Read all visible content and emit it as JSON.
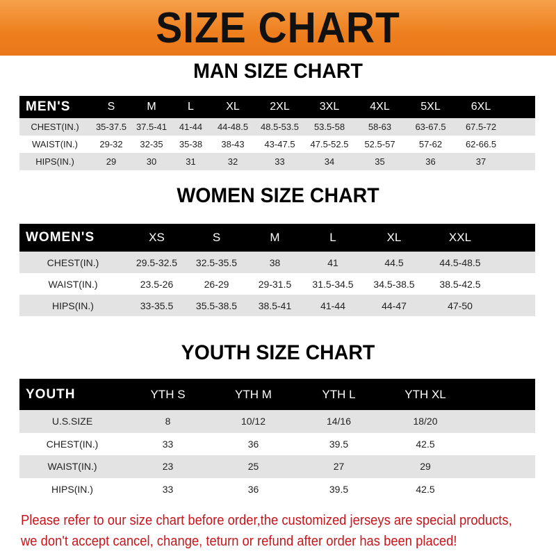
{
  "banner_title": "SIZE CHART",
  "men": {
    "title": "MAN SIZE CHART",
    "header": [
      "MEN'S",
      "S",
      "M",
      "L",
      "XL",
      "2XL",
      "3XL",
      "4XL",
      "5XL",
      "6XL"
    ],
    "rows": [
      [
        "CHEST(IN.)",
        "35-37.5",
        "37.5-41",
        "41-44",
        "44-48.5",
        "48.5-53.5",
        "53.5-58",
        "58-63",
        "63-67.5",
        "67.5-72"
      ],
      [
        "WAIST(IN.)",
        "29-32",
        "32-35",
        "35-38",
        "38-43",
        "43-47.5",
        "47.5-52.5",
        "52.5-57",
        "57-62",
        "62-66.5"
      ],
      [
        "HIPS(IN.)",
        "29",
        "30",
        "31",
        "32",
        "33",
        "34",
        "35",
        "36",
        "37"
      ]
    ]
  },
  "women": {
    "title": "WOMEN SIZE CHART",
    "header": [
      "WOMEN'S",
      "XS",
      "S",
      "M",
      "L",
      "XL",
      "XXL"
    ],
    "rows": [
      [
        "CHEST(IN.)",
        "29.5-32.5",
        "32.5-35.5",
        "38",
        "41",
        "44.5",
        "44.5-48.5"
      ],
      [
        "WAIST(IN.)",
        "23.5-26",
        "26-29",
        "29-31.5",
        "31.5-34.5",
        "34.5-38.5",
        "38.5-42.5"
      ],
      [
        "HIPS(IN.)",
        "33-35.5",
        "35.5-38.5",
        "38.5-41",
        "41-44",
        "44-47",
        "47-50"
      ]
    ]
  },
  "youth": {
    "title": "YOUTH SIZE CHART",
    "header": [
      "YOUTH",
      "YTH S",
      "YTH M",
      "YTH L",
      "YTH XL"
    ],
    "rows": [
      [
        "U.S.SIZE",
        "8",
        "10/12",
        "14/16",
        "18/20"
      ],
      [
        "CHEST(IN.)",
        "33",
        "36",
        "39.5",
        "42.5"
      ],
      [
        "WAIST(IN.)",
        "23",
        "25",
        "27",
        "29"
      ],
      [
        "HIPS(IN.)",
        "33",
        "36",
        "39.5",
        "42.5"
      ]
    ]
  },
  "note": [
    "Please refer to our size chart before order,the customized jerseys are special products,",
    "we don't accept cancel, change, teturn or refund after order has been placed!"
  ],
  "colors": {
    "banner": "#ee7f1e",
    "header_row": "#000000",
    "stripe": "#e3e3e3",
    "note": "#c8151b"
  }
}
